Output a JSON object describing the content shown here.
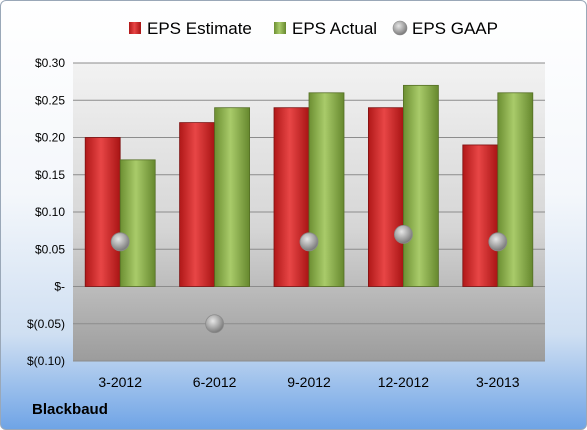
{
  "company": "Blackbaud",
  "chart_data": {
    "type": "bar",
    "categories": [
      "3-2012",
      "6-2012",
      "9-2012",
      "12-2012",
      "3-2013"
    ],
    "series": [
      {
        "name": "EPS Estimate",
        "values": [
          0.2,
          0.22,
          0.24,
          0.24,
          0.19
        ],
        "color": "#d0302e"
      },
      {
        "name": "EPS Actual",
        "values": [
          0.17,
          0.24,
          0.26,
          0.27,
          0.26
        ],
        "color": "#8fb04f"
      }
    ],
    "gaap": {
      "name": "EPS GAAP",
      "values": [
        0.06,
        -0.05,
        0.06,
        0.07,
        0.06
      ],
      "color": "#a6a6a6"
    },
    "y_ticks": [
      {
        "value": 0.3,
        "label": "$0.30"
      },
      {
        "value": 0.25,
        "label": "$0.25"
      },
      {
        "value": 0.2,
        "label": "$0.20"
      },
      {
        "value": 0.15,
        "label": "$0.15"
      },
      {
        "value": 0.1,
        "label": "$0.10"
      },
      {
        "value": 0.05,
        "label": "$0.05"
      },
      {
        "value": 0.0,
        "label": "$-"
      },
      {
        "value": -0.05,
        "label": "$(0.05)"
      },
      {
        "value": -0.1,
        "label": "$(0.10)"
      }
    ],
    "ylim": [
      -0.1,
      0.3
    ],
    "grid": true,
    "legend_position": "top"
  }
}
